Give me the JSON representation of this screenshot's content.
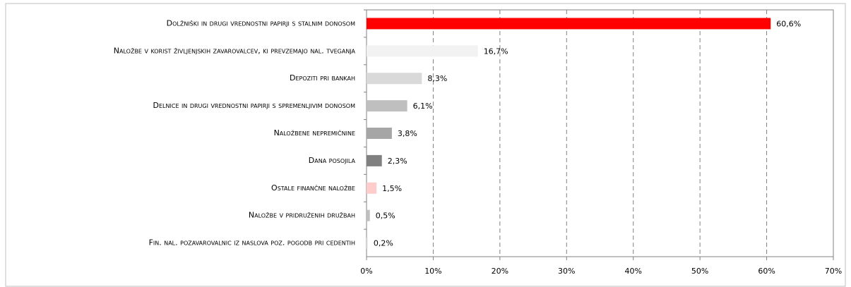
{
  "chart_data": {
    "type": "bar",
    "orientation": "horizontal",
    "categories": [
      "Dolžniški in drugi vrednostni papirji s stalnim donosom",
      "Naložbe v korist življenjskih zavarovalcev, ki prevzemajo nal. tveganja",
      "Depoziti pri bankah",
      "Delnice in drugi vrednostni papirji s spremenljivim donosom",
      "Naložbene nepremičnine",
      "Dana posojila",
      "Ostale finančne naložbe",
      "Naložbe v pridruženih družbah",
      "Fin. nal. pozavarovalnic iz naslova poz. pogodb pri cedentih"
    ],
    "values": [
      60.6,
      16.7,
      8.3,
      6.1,
      3.8,
      2.3,
      1.5,
      0.5,
      0.2
    ],
    "value_labels": [
      "60,6%",
      "16,7%",
      "8,3%",
      "6,1%",
      "3,8%",
      "2,3%",
      "1,5%",
      "0,5%",
      "0,2%"
    ],
    "colors": [
      "#ff0000",
      "#f2f2f2",
      "#d9d9d9",
      "#bfbfbf",
      "#a6a6a6",
      "#808080",
      "#ffcccc",
      "#bfbfbf",
      "#e6e6e6"
    ],
    "xlim": [
      0,
      70
    ],
    "xticks": [
      {
        "value": 0,
        "label": "0%"
      },
      {
        "value": 10,
        "label": "10%"
      },
      {
        "value": 20,
        "label": "20%"
      },
      {
        "value": 30,
        "label": "30%"
      },
      {
        "value": 40,
        "label": "40%"
      },
      {
        "value": 50,
        "label": "50%"
      },
      {
        "value": 60,
        "label": "60%"
      },
      {
        "value": 70,
        "label": "70%"
      }
    ],
    "grid": true
  }
}
